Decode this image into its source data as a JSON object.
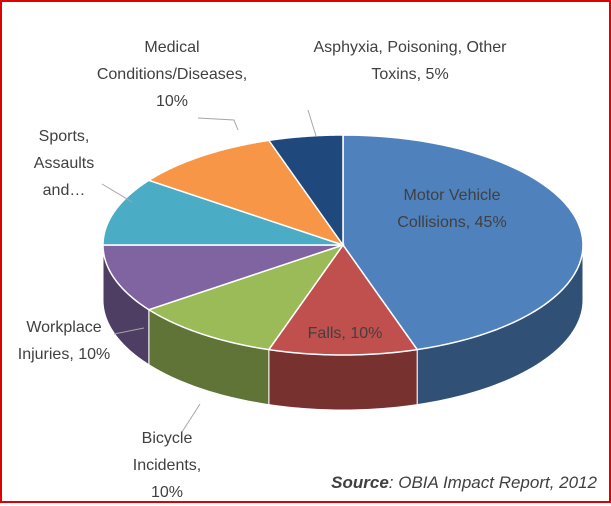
{
  "chart_data": {
    "type": "pie3d",
    "labels": [
      "Motor Vehicle Collisions, 45%",
      "Falls, 10%",
      "Bicycle Incidents, 10%",
      "Workplace Injuries, 10%",
      "Sports, Assaults and…",
      "Medical Conditions/Diseases, 10%",
      "Asphyxia, Poisoning, Other Toxins, 5%"
    ],
    "values": [
      45,
      10,
      10,
      10,
      10,
      10,
      5
    ],
    "colors": [
      "#4f81bd",
      "#c0504d",
      "#9bbb59",
      "#8064a2",
      "#4bacc6",
      "#f79646",
      "#1f497d"
    ],
    "source_label": "Source",
    "source_text": ": OBIA Impact Report, 2012"
  }
}
